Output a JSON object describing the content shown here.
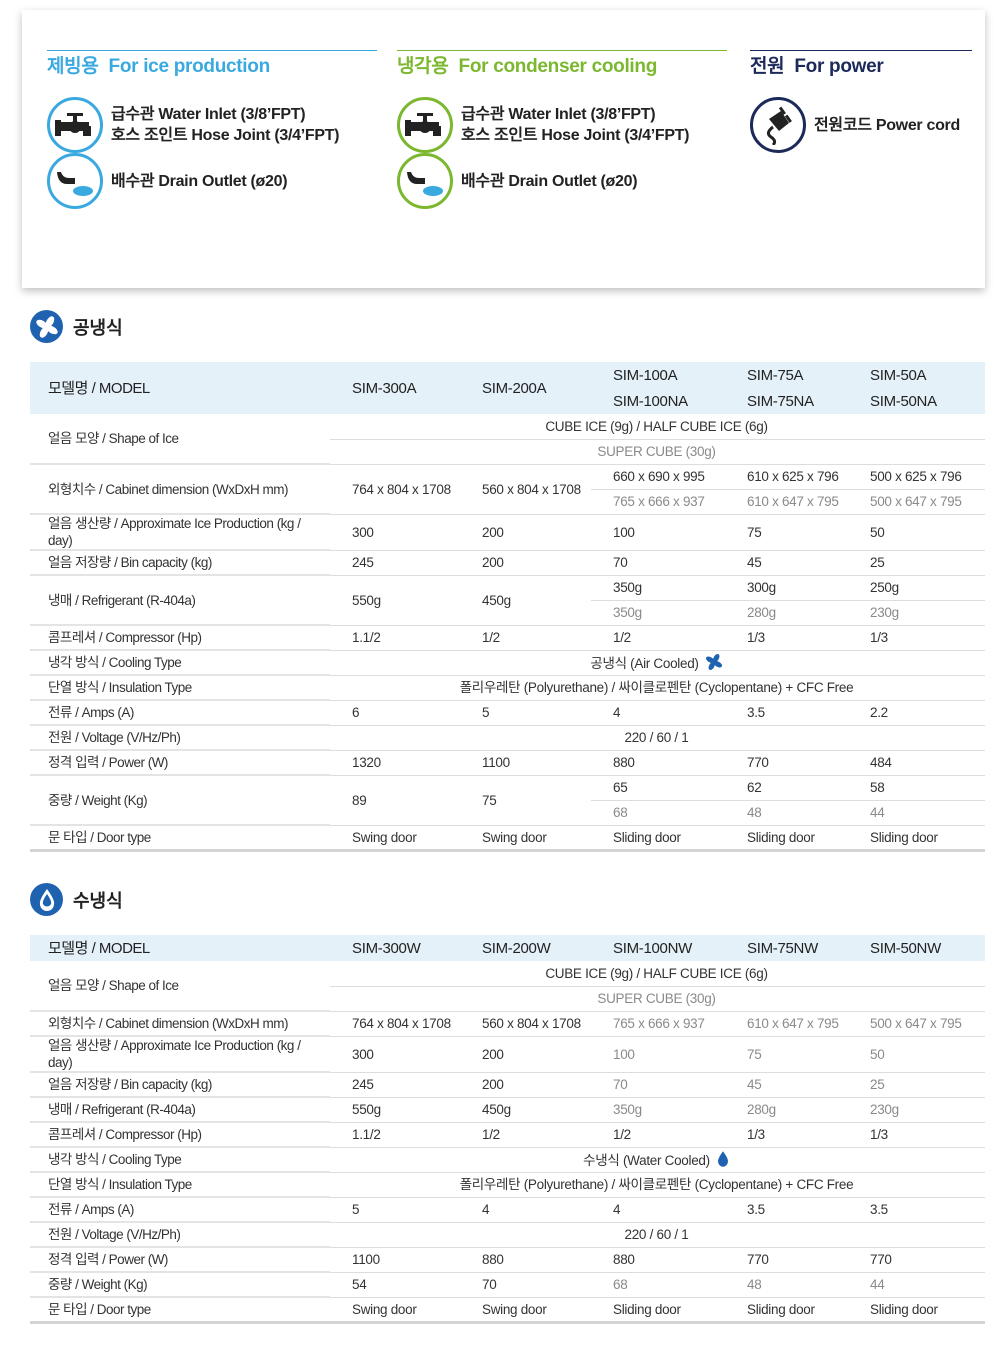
{
  "connections": [
    {
      "title_ko": "제빙용",
      "title_en": "For ice production",
      "color": "#3aa9e0",
      "items": [
        {
          "icon": "faucet-icon",
          "lines": [
            "급수관   Water Inlet (3/8’FPT)",
            "호스 조인트   Hose Joint (3/4’FPT)"
          ]
        },
        {
          "icon": "drain-icon",
          "lines": [
            "배수관   Drain Outlet (ø20)"
          ]
        }
      ]
    },
    {
      "title_ko": "냉각용",
      "title_en": "For condenser cooling",
      "color": "#7cb82f",
      "items": [
        {
          "icon": "faucet-icon",
          "lines": [
            "급수관    Water Inlet (3/8’FPT)",
            "호스 조인트   Hose Joint (3/4’FPT)"
          ]
        },
        {
          "icon": "drain-icon",
          "lines": [
            "배수관   Drain Outlet (ø20)"
          ]
        }
      ]
    },
    {
      "title_ko": "전원",
      "title_en": "For power",
      "color": "#1c2a5a",
      "items": [
        {
          "icon": "power-plug-icon",
          "lines": [
            "전원코드   Power cord"
          ]
        }
      ]
    }
  ],
  "tables": [
    {
      "title": "공냉식",
      "icon": "fan-icon",
      "rows": [
        {
          "label": "모델명 / MODEL",
          "head": true,
          "lines": [
            [
              "SIM-300A",
              "SIM-200A",
              "SIM-100A",
              "SIM-75A",
              "SIM-50A"
            ],
            [
              null,
              null,
              {
                "t": "SIM-100NA",
                "g": true
              },
              {
                "t": "SIM-75NA",
                "g": true
              },
              {
                "t": "SIM-50NA",
                "g": true
              }
            ]
          ]
        },
        {
          "label": "얼음 모양  / Shape of Ice",
          "lines": [
            {
              "span": "CUBE ICE (9g) / HALF CUBE ICE (6g)"
            },
            {
              "span": "SUPER CUBE (30g)",
              "g": true
            }
          ]
        },
        {
          "label": "외형치수 / Cabinet dimension (WxDxH mm)",
          "lines": [
            [
              "764 x 804 x 1708",
              "560 x 804 x 1708",
              "660 x 690 x 995",
              "610 x 625 x 796",
              "500 x 625 x 796"
            ],
            [
              null,
              null,
              {
                "t": "765 x 666 x 937",
                "g": true
              },
              {
                "t": "610 x 647 x 795",
                "g": true
              },
              {
                "t": "500 x 647 x 795",
                "g": true
              }
            ]
          ]
        },
        {
          "label": "얼음 생산량 / Approximate Ice Production (kg / day)",
          "lines": [
            [
              "300",
              "200",
              "100",
              "75",
              "50"
            ]
          ]
        },
        {
          "label": "얼음 저장량 / Bin capacity (kg)",
          "lines": [
            [
              "245",
              "200",
              "70",
              "45",
              "25"
            ]
          ]
        },
        {
          "label": "냉매 / Refrigerant (R-404a)",
          "lines": [
            [
              "550g",
              "450g",
              "350g",
              "300g",
              "250g"
            ],
            [
              null,
              null,
              {
                "t": "350g",
                "g": true
              },
              {
                "t": "280g",
                "g": true
              },
              {
                "t": "230g",
                "g": true
              }
            ]
          ]
        },
        {
          "label": "콤프레셔 /  Compressor (Hp)",
          "lines": [
            [
              "1.1/2",
              "1/2",
              "1/2",
              "1/3",
              "1/3"
            ]
          ]
        },
        {
          "label": "냉각 방식 / Cooling Type",
          "lines": [
            {
              "span": "공냉식 (Air Cooled)",
              "icon": "fan-icon"
            }
          ]
        },
        {
          "label": "단열 방식 / Insulation Type",
          "lines": [
            {
              "span": "폴리우레탄 (Polyurethane) / 싸이클로펜탄 (Cyclopentane) +  CFC Free"
            }
          ]
        },
        {
          "label": "전류 / Amps (A)",
          "lines": [
            [
              "6",
              "5",
              "4",
              "3.5",
              "2.2"
            ]
          ]
        },
        {
          "label": "전원 / Voltage (V/Hz/Ph)",
          "lines": [
            {
              "span": "220 / 60 / 1"
            }
          ]
        },
        {
          "label": "정격 입력 / Power (W)",
          "lines": [
            [
              "1320",
              "1100",
              "880",
              "770",
              "484"
            ]
          ]
        },
        {
          "label": "중량 / Weight (Kg)",
          "lines": [
            [
              "89",
              "75",
              "65",
              "62",
              "58"
            ],
            [
              null,
              null,
              {
                "t": "68",
                "g": true
              },
              {
                "t": "48",
                "g": true
              },
              {
                "t": "44",
                "g": true
              }
            ]
          ]
        },
        {
          "label": "문 타입 / Door type",
          "lines": [
            [
              "Swing door",
              "Swing door",
              "Sliding door",
              "Sliding door",
              "Sliding door"
            ]
          ]
        }
      ]
    },
    {
      "title": "수냉식",
      "icon": "water-drop-icon",
      "rows": [
        {
          "label": "모델명 / MODEL",
          "head": true,
          "lines": [
            [
              "SIM-300W",
              "SIM-200W",
              {
                "t": "SIM-100NW",
                "g": true
              },
              {
                "t": "SIM-75NW",
                "g": true
              },
              {
                "t": "SIM-50NW",
                "g": true
              }
            ],
            [
              null,
              null,
              null,
              null,
              null
            ]
          ]
        },
        {
          "label": "얼음 모양  / Shape of Ice",
          "lines": [
            {
              "span": "CUBE ICE (9g) / HALF CUBE ICE (6g)"
            },
            {
              "span": "SUPER CUBE (30g)",
              "g": true
            }
          ]
        },
        {
          "label": "외형치수 / Cabinet dimension (WxDxH mm)",
          "lines": [
            [
              "764 x 804 x 1708",
              "560 x 804 x 1708",
              {
                "t": "765 x 666 x 937",
                "g": true
              },
              {
                "t": "610 x 647 x 795",
                "g": true
              },
              {
                "t": "500 x 647 x 795",
                "g": true
              }
            ]
          ]
        },
        {
          "label": "얼음 생산량 / Approximate Ice Production (kg / day)",
          "lines": [
            [
              "300",
              "200",
              {
                "t": "100",
                "g": true
              },
              {
                "t": "75",
                "g": true
              },
              {
                "t": "50",
                "g": true
              }
            ]
          ]
        },
        {
          "label": "얼음 저장량 / Bin capacity (kg)",
          "lines": [
            [
              "245",
              "200",
              {
                "t": "70",
                "g": true
              },
              {
                "t": "45",
                "g": true
              },
              {
                "t": "25",
                "g": true
              }
            ]
          ]
        },
        {
          "label": "냉매 / Refrigerant (R-404a)",
          "lines": [
            [
              "550g",
              "450g",
              {
                "t": "350g",
                "g": true
              },
              {
                "t": "280g",
                "g": true
              },
              {
                "t": "230g",
                "g": true
              }
            ]
          ]
        },
        {
          "label": "콤프레셔 / Compressor (Hp)",
          "lines": [
            [
              "1.1/2",
              "1/2",
              "1/2",
              "1/3",
              "1/3"
            ]
          ]
        },
        {
          "label": "냉각 방식 / Cooling Type",
          "lines": [
            {
              "span": "수냉식 (Water Cooled)",
              "icon": "water-drop-icon"
            }
          ]
        },
        {
          "label": "단열 방식 / Insulation Type",
          "lines": [
            {
              "span": "폴리우레탄 (Polyurethane) / 싸이클로펜탄 (Cyclopentane) +  CFC Free"
            }
          ]
        },
        {
          "label": "전류 / Amps (A)",
          "lines": [
            [
              "5",
              "4",
              "4",
              "3.5",
              "3.5"
            ]
          ]
        },
        {
          "label": "전원 / Voltage (V/Hz/Ph)",
          "lines": [
            {
              "span": "220 / 60 / 1"
            }
          ]
        },
        {
          "label": "정격 입력 / Power (W)",
          "lines": [
            [
              "1100",
              "880",
              "880",
              "770",
              "770"
            ]
          ]
        },
        {
          "label": "중량 / Weight (Kg)",
          "lines": [
            [
              "54",
              "70",
              {
                "t": "68",
                "g": true
              },
              {
                "t": "48",
                "g": true
              },
              {
                "t": "44",
                "g": true
              }
            ]
          ]
        },
        {
          "label": "문 타입 / Door type",
          "lines": [
            [
              "Swing door",
              "Swing door",
              "Sliding door",
              "Sliding door",
              "Sliding door"
            ]
          ]
        }
      ]
    }
  ]
}
